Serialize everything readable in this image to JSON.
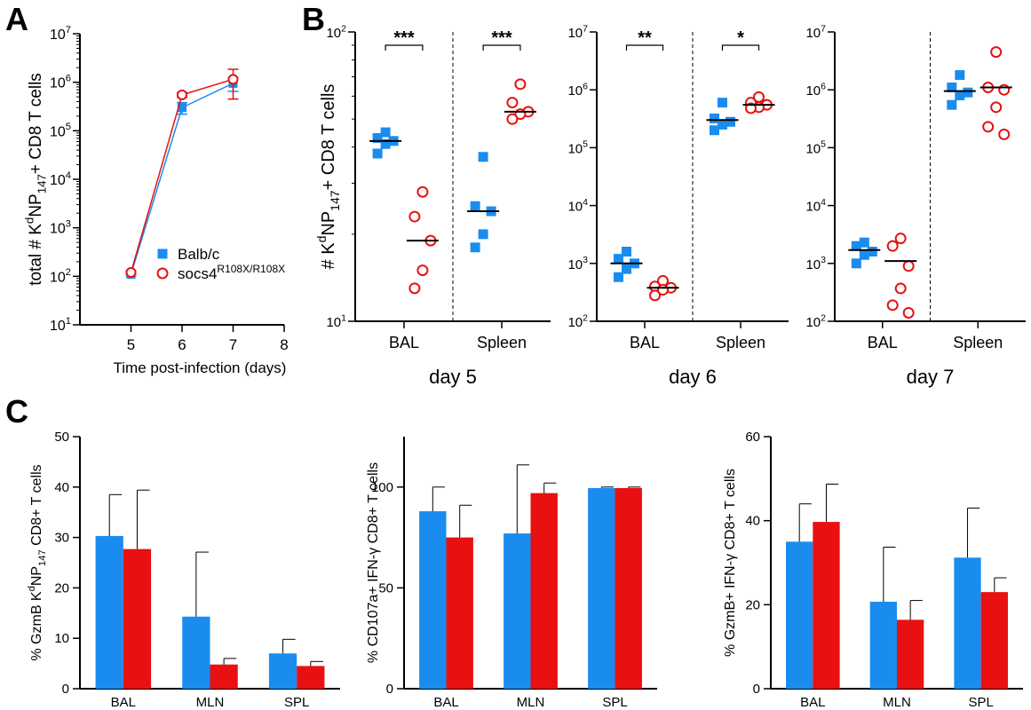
{
  "colors": {
    "balb": "#1a8cf0",
    "socs": "#e81010",
    "axis": "#000000"
  },
  "panel_labels": [
    "A",
    "B",
    "C"
  ],
  "chart_data": [
    {
      "id": "A",
      "type": "line",
      "ylabel_parts": [
        "total # K",
        "d",
        "NP",
        "147",
        "+ CD8 T cells"
      ],
      "xlabel": "Time post-infection (days)",
      "yscale": "log",
      "ylim": [
        10,
        10000000
      ],
      "xlim": [
        4,
        8
      ],
      "xticks": [
        5,
        6,
        7,
        8
      ],
      "ytick_exps": [
        1,
        2,
        3,
        4,
        5,
        6,
        7
      ],
      "legend_position": "bottom-right",
      "series": [
        {
          "name": "Balb/c",
          "name_sup": "",
          "marker": "square",
          "color": "#1a8cf0",
          "x": [
            5,
            6,
            7
          ],
          "y": [
            110,
            300000,
            950000
          ],
          "err": [
            10,
            80000,
            300000
          ]
        },
        {
          "name": "socs4",
          "name_sup": "R108X/R108X",
          "marker": "circle",
          "color": "#e81010",
          "x": [
            5,
            6,
            7
          ],
          "y": [
            120,
            550000,
            1150000
          ],
          "err": [
            10,
            60000,
            700000
          ]
        }
      ]
    },
    {
      "id": "B1",
      "type": "scatter",
      "ylabel_parts": [
        "# K",
        "d",
        "NP",
        "147",
        "+ CD8 T cells"
      ],
      "xlabel": "day 5",
      "yscale": "log",
      "ylim": [
        10,
        100
      ],
      "ytick_exps": [
        1,
        2
      ],
      "categories": [
        "BAL",
        "Spleen"
      ],
      "significance": [
        "***",
        "***"
      ],
      "groups": [
        {
          "cat": "BAL",
          "series": "Balb/c",
          "marker": "square",
          "points": [
            45,
            41,
            42,
            43,
            38
          ],
          "median": 42
        },
        {
          "cat": "BAL",
          "series": "socs4",
          "marker": "circle",
          "points": [
            28,
            23,
            19,
            15,
            13
          ],
          "median": 19
        },
        {
          "cat": "Spleen",
          "series": "Balb/c",
          "marker": "square",
          "points": [
            37,
            25,
            24,
            20,
            18
          ],
          "median": 24
        },
        {
          "cat": "Spleen",
          "series": "socs4",
          "marker": "circle",
          "points": [
            66,
            57,
            53,
            52,
            50
          ],
          "median": 53
        }
      ]
    },
    {
      "id": "B2",
      "type": "scatter",
      "xlabel": "day 6",
      "yscale": "log",
      "ylim": [
        100,
        10000000
      ],
      "ytick_exps": [
        2,
        3,
        4,
        5,
        6,
        7
      ],
      "categories": [
        "BAL",
        "Spleen"
      ],
      "significance": [
        "**",
        "*"
      ],
      "groups": [
        {
          "cat": "BAL",
          "series": "Balb/c",
          "marker": "square",
          "points": [
            1600,
            1200,
            1000,
            800,
            580
          ],
          "median": 1000
        },
        {
          "cat": "BAL",
          "series": "socs4",
          "marker": "circle",
          "points": [
            500,
            400,
            380,
            350,
            280
          ],
          "median": 380
        },
        {
          "cat": "Spleen",
          "series": "Balb/c",
          "marker": "square",
          "points": [
            600000,
            320000,
            280000,
            250000,
            200000
          ],
          "median": 300000
        },
        {
          "cat": "Spleen",
          "series": "socs4",
          "marker": "circle",
          "points": [
            750000,
            600000,
            550000,
            500000,
            480000
          ],
          "median": 550000
        }
      ]
    },
    {
      "id": "B3",
      "type": "scatter",
      "xlabel": "day 7",
      "yscale": "log",
      "ylim": [
        100,
        10000000
      ],
      "ytick_exps": [
        2,
        3,
        4,
        5,
        6,
        7
      ],
      "categories": [
        "BAL",
        "Spleen"
      ],
      "significance": [
        "",
        ""
      ],
      "groups": [
        {
          "cat": "BAL",
          "series": "Balb/c",
          "marker": "square",
          "points": [
            2300,
            2000,
            1600,
            1400,
            1000
          ],
          "median": 1700
        },
        {
          "cat": "BAL",
          "series": "socs4",
          "marker": "circle",
          "points": [
            2700,
            2000,
            900,
            370,
            190,
            140
          ],
          "median": 1100
        },
        {
          "cat": "Spleen",
          "series": "Balb/c",
          "marker": "square",
          "points": [
            1800000,
            1100000,
            900000,
            800000,
            550000
          ],
          "median": 950000
        },
        {
          "cat": "Spleen",
          "series": "socs4",
          "marker": "circle",
          "points": [
            4500000,
            1100000,
            1000000,
            500000,
            230000,
            170000
          ],
          "median": 1100000
        }
      ]
    },
    {
      "id": "C1",
      "type": "bar",
      "ylabel_parts": [
        "% GzmB K",
        "d",
        "NP",
        "147",
        " CD8+ T cells"
      ],
      "categories": [
        "BAL",
        "MLN",
        "SPL"
      ],
      "ylim": [
        0,
        50
      ],
      "yticks": [
        0,
        10,
        20,
        30,
        40,
        50
      ],
      "series": [
        {
          "name": "Balb/c",
          "color": "#1a8cf0",
          "values": [
            30.3,
            14.3,
            7.0
          ],
          "err": [
            8.2,
            12.8,
            2.8
          ]
        },
        {
          "name": "socs4",
          "color": "#e81010",
          "values": [
            27.7,
            4.8,
            4.5
          ],
          "err": [
            11.7,
            1.2,
            0.9
          ]
        }
      ]
    },
    {
      "id": "C2",
      "type": "bar",
      "ylabel_parts": [
        "% CD107a+ IFN-γ CD8+ T cells"
      ],
      "categories": [
        "BAL",
        "MLN",
        "SPL"
      ],
      "ylim": [
        0,
        125
      ],
      "yticks": [
        0,
        50,
        100
      ],
      "series": [
        {
          "name": "Balb/c",
          "color": "#1a8cf0",
          "values": [
            88,
            77,
            99.5
          ],
          "err": [
            12,
            34,
            0.5
          ]
        },
        {
          "name": "socs4",
          "color": "#e81010",
          "values": [
            75,
            97,
            99.5
          ],
          "err": [
            16,
            5,
            0.5
          ]
        }
      ]
    },
    {
      "id": "C3",
      "type": "bar",
      "ylabel_parts": [
        "% GzmB+ IFN-γ CD8+ T cells"
      ],
      "categories": [
        "BAL",
        "MLN",
        "SPL"
      ],
      "ylim": [
        0,
        60
      ],
      "yticks": [
        0,
        20,
        40,
        60
      ],
      "series": [
        {
          "name": "Balb/c",
          "color": "#1a8cf0",
          "values": [
            35,
            20.7,
            31.2
          ],
          "err": [
            9,
            13,
            11.8
          ]
        },
        {
          "name": "socs4",
          "color": "#e81010",
          "values": [
            39.7,
            16.4,
            23
          ],
          "err": [
            9,
            4.6,
            3.4
          ]
        }
      ]
    }
  ]
}
